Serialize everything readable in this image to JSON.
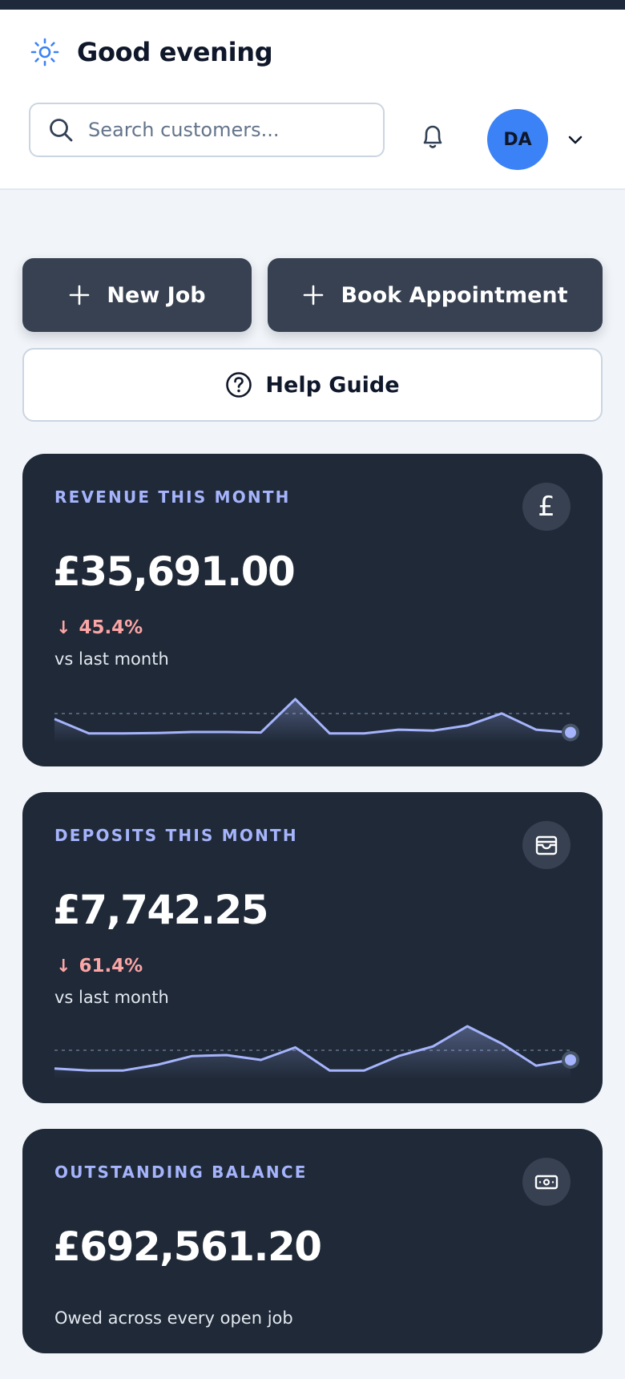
{
  "header": {
    "greeting": "Good evening",
    "search_placeholder": "Search customers...",
    "avatar_initials": "DA"
  },
  "actions": {
    "new_job": "New Job",
    "book_appointment": "Book Appointment",
    "help_guide": "Help Guide"
  },
  "cards": [
    {
      "title": "REVENUE THIS MONTH",
      "icon": "pound-sign-icon",
      "value": "£35,691.00",
      "change": "45.4%",
      "change_direction": "down",
      "comparison": "vs last month",
      "sparkline": [
        40,
        9,
        9,
        10,
        12,
        12,
        11,
        83,
        9,
        9,
        17,
        15,
        26,
        52,
        17,
        11
      ]
    },
    {
      "title": "DEPOSITS THIS MONTH",
      "icon": "wallet-icon",
      "value": "£7,742.25",
      "change": "61.4%",
      "change_direction": "down",
      "comparison": "vs last month",
      "sparkline": [
        12,
        8,
        8,
        20,
        38,
        40,
        30,
        56,
        8,
        8,
        38,
        58,
        100,
        64,
        18,
        30
      ]
    },
    {
      "title": "OUTSTANDING BALANCE",
      "icon": "banknote-icon",
      "value": "£692,561.20",
      "caption": "Owed across every open job"
    }
  ],
  "colors": {
    "card_bg": "#1f2937",
    "accent": "#a5b4fc",
    "negative": "#fca5a5",
    "avatar": "#3b82f6"
  }
}
